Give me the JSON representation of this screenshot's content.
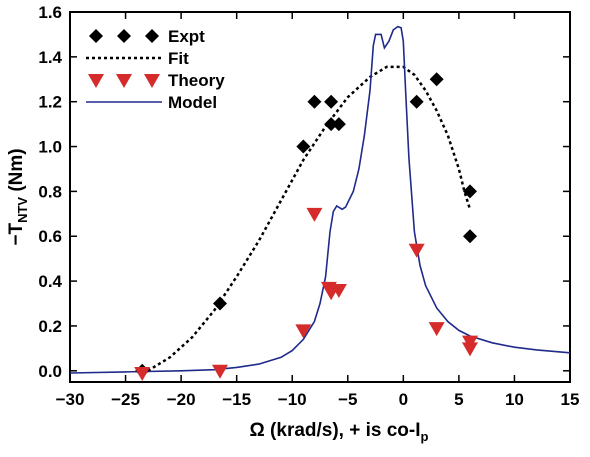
{
  "chart_data": {
    "type": "scatter",
    "title": "",
    "xlabel": {
      "main": "Ω (krad/s), + is co-I",
      "sub": "p"
    },
    "ylabel": {
      "main": "−T",
      "sub": "NTV",
      "unit": " (Nm)"
    },
    "xlim": [
      -30,
      15
    ],
    "ylim": [
      -0.05,
      1.6
    ],
    "xticks": [
      "−30",
      "−25",
      "−20",
      "−15",
      "−10",
      "−5",
      "0",
      "5",
      "10",
      "15"
    ],
    "xtick_values": [
      -30,
      -25,
      -20,
      -15,
      -10,
      -5,
      0,
      5,
      10,
      15
    ],
    "yticks": [
      "0.0",
      "0.2",
      "0.4",
      "0.6",
      "0.8",
      "1.0",
      "1.2",
      "1.4",
      "1.6"
    ],
    "ytick_values": [
      0,
      0.2,
      0.4,
      0.6,
      0.8,
      1.0,
      1.2,
      1.4,
      1.6
    ],
    "grid": false,
    "legend_position": "top-left",
    "series": [
      {
        "name": "Expt",
        "kind": "scatter",
        "marker": "diamond",
        "color": "#000000",
        "points": [
          [
            -23.5,
            0.0
          ],
          [
            -16.5,
            0.3
          ],
          [
            -9.0,
            1.0
          ],
          [
            -8.0,
            1.2
          ],
          [
            -6.5,
            1.2
          ],
          [
            -6.5,
            1.1
          ],
          [
            -5.8,
            1.1
          ],
          [
            1.2,
            1.2
          ],
          [
            3.0,
            1.3
          ],
          [
            6.0,
            0.8
          ],
          [
            6.0,
            0.6
          ]
        ]
      },
      {
        "name": "Fit",
        "kind": "line",
        "dash": "dotted",
        "color": "#000000",
        "points": [
          [
            -23.0,
            0.0
          ],
          [
            -21.0,
            0.06
          ],
          [
            -19.0,
            0.15
          ],
          [
            -17.0,
            0.27
          ],
          [
            -15.0,
            0.42
          ],
          [
            -13.0,
            0.58
          ],
          [
            -11.0,
            0.76
          ],
          [
            -9.0,
            0.94
          ],
          [
            -7.0,
            1.09
          ],
          [
            -5.0,
            1.22
          ],
          [
            -3.0,
            1.31
          ],
          [
            -1.5,
            1.355
          ],
          [
            0.0,
            1.355
          ],
          [
            1.0,
            1.32
          ],
          [
            2.0,
            1.25
          ],
          [
            3.0,
            1.16
          ],
          [
            4.0,
            1.05
          ],
          [
            5.0,
            0.9
          ],
          [
            5.5,
            0.8
          ],
          [
            6.0,
            0.72
          ]
        ]
      },
      {
        "name": "Theory",
        "kind": "scatter",
        "marker": "triangle-down",
        "color": "#d62b2b",
        "points": [
          [
            -23.5,
            -0.01
          ],
          [
            -16.5,
            0.0
          ],
          [
            -9.0,
            0.18
          ],
          [
            -8.0,
            0.7
          ],
          [
            -6.7,
            0.37
          ],
          [
            -6.5,
            0.35
          ],
          [
            -5.8,
            0.36
          ],
          [
            1.2,
            0.54
          ],
          [
            3.0,
            0.19
          ],
          [
            6.0,
            0.13
          ],
          [
            6.0,
            0.1
          ]
        ]
      },
      {
        "name": "Model",
        "kind": "line",
        "dash": "solid",
        "color": "#1f2a8a",
        "points": [
          [
            -30.0,
            -0.01
          ],
          [
            -25.0,
            -0.005
          ],
          [
            -20.0,
            0.0
          ],
          [
            -17.0,
            0.005
          ],
          [
            -15.0,
            0.015
          ],
          [
            -13.0,
            0.03
          ],
          [
            -11.0,
            0.06
          ],
          [
            -10.0,
            0.09
          ],
          [
            -9.0,
            0.14
          ],
          [
            -8.0,
            0.22
          ],
          [
            -7.5,
            0.3
          ],
          [
            -7.0,
            0.42
          ],
          [
            -6.6,
            0.62
          ],
          [
            -6.3,
            0.71
          ],
          [
            -6.0,
            0.735
          ],
          [
            -5.5,
            0.72
          ],
          [
            -5.2,
            0.73
          ],
          [
            -4.5,
            0.8
          ],
          [
            -4.0,
            0.9
          ],
          [
            -3.5,
            1.05
          ],
          [
            -3.0,
            1.25
          ],
          [
            -2.7,
            1.45
          ],
          [
            -2.5,
            1.5
          ],
          [
            -2.0,
            1.5
          ],
          [
            -1.7,
            1.44
          ],
          [
            -1.3,
            1.47
          ],
          [
            -0.9,
            1.52
          ],
          [
            -0.5,
            1.535
          ],
          [
            -0.2,
            1.53
          ],
          [
            0.0,
            1.47
          ],
          [
            0.2,
            1.25
          ],
          [
            0.5,
            0.95
          ],
          [
            1.0,
            0.62
          ],
          [
            1.5,
            0.47
          ],
          [
            2.0,
            0.38
          ],
          [
            3.0,
            0.28
          ],
          [
            4.0,
            0.22
          ],
          [
            5.0,
            0.18
          ],
          [
            6.0,
            0.155
          ],
          [
            8.0,
            0.125
          ],
          [
            10.0,
            0.105
          ],
          [
            12.0,
            0.093
          ],
          [
            15.0,
            0.08
          ]
        ]
      }
    ]
  }
}
